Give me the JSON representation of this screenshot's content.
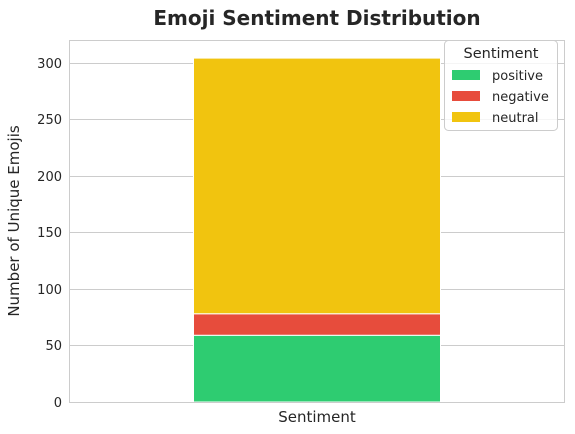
{
  "chart_data": {
    "type": "bar",
    "stacked": true,
    "title": "Emoji Sentiment Distribution",
    "xlabel": "",
    "ylabel": "Number of Unique Emojis",
    "categories": [
      "Sentiment"
    ],
    "ylim": [
      0,
      320
    ],
    "yticks": [
      0,
      50,
      100,
      150,
      200,
      250,
      300
    ],
    "grid": true,
    "legend": {
      "title": "Sentiment",
      "placement": "top-right"
    },
    "series": [
      {
        "name": "positive",
        "values": [
          59
        ],
        "color": "#2ecc71"
      },
      {
        "name": "negative",
        "values": [
          19
        ],
        "color": "#e74c3c"
      },
      {
        "name": "neutral",
        "values": [
          226
        ],
        "color": "#f1c40f"
      }
    ]
  }
}
